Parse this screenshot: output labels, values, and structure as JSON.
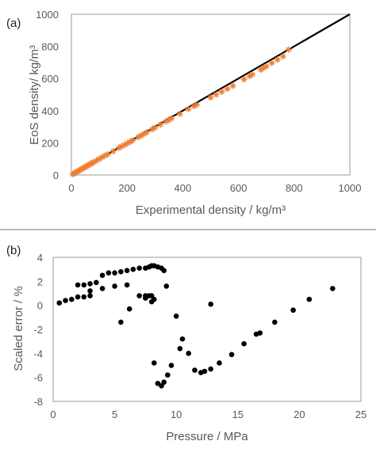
{
  "chart_data": [
    {
      "type": "scatter",
      "panel_label": "(a)",
      "title": "",
      "xlabel": "Experimental density / kg/m³",
      "ylabel": "EoS density/ kg/m³",
      "xlim": [
        0,
        1000
      ],
      "ylim": [
        0,
        1000
      ],
      "xticks": [
        0,
        200,
        400,
        600,
        800,
        1000
      ],
      "yticks": [
        0,
        200,
        400,
        600,
        800,
        1000
      ],
      "grid": false,
      "legend": "none",
      "series": [
        {
          "kind": "line",
          "color": "#000000",
          "x": [
            0,
            1000
          ],
          "y": [
            0,
            1000
          ]
        },
        {
          "kind": "scatter",
          "marker": "asterisk",
          "color": "#ed7d31",
          "x": [
            5,
            10,
            15,
            20,
            25,
            30,
            35,
            40,
            45,
            50,
            55,
            60,
            65,
            70,
            75,
            80,
            90,
            100,
            110,
            120,
            130,
            150,
            170,
            180,
            190,
            200,
            210,
            220,
            240,
            250,
            260,
            270,
            290,
            300,
            320,
            340,
            350,
            360,
            390,
            420,
            440,
            450,
            500,
            520,
            540,
            560,
            580,
            620,
            640,
            650,
            680,
            690,
            700,
            720,
            740,
            760,
            780
          ],
          "y": [
            5,
            10,
            15,
            20,
            25,
            30,
            35,
            40,
            45,
            50,
            55,
            60,
            65,
            70,
            75,
            80,
            90,
            100,
            110,
            120,
            128,
            148,
            168,
            178,
            186,
            196,
            206,
            215,
            235,
            245,
            255,
            265,
            284,
            294,
            314,
            333,
            343,
            352,
            380,
            410,
            428,
            438,
            482,
            500,
            518,
            536,
            555,
            595,
            615,
            625,
            655,
            666,
            676,
            697,
            718,
            738,
            780
          ]
        }
      ]
    },
    {
      "type": "scatter",
      "panel_label": "(b)",
      "title": "",
      "xlabel": "Pressure / MPa",
      "ylabel": "Scaled error / %",
      "xlim": [
        0,
        25
      ],
      "ylim": [
        -8,
        4
      ],
      "xticks": [
        0,
        5,
        10,
        15,
        20,
        25
      ],
      "yticks": [
        -8,
        -6,
        -4,
        -2,
        0,
        2,
        4
      ],
      "grid": false,
      "legend": "none",
      "series": [
        {
          "kind": "scatter",
          "marker": "circle",
          "color": "#000000",
          "x": [
            0.5,
            1,
            1.5,
            2,
            2.5,
            3,
            2,
            2.5,
            3,
            3.5,
            3,
            4,
            4,
            4.5,
            5,
            5.5,
            5,
            6,
            6.5,
            7,
            7.5,
            7.8,
            8,
            8.2,
            8.5,
            8.8,
            9,
            9.2,
            6,
            5.5,
            6.2,
            7,
            7.5,
            7.8,
            8,
            8.2,
            7.5,
            8,
            8.2,
            8.5,
            8.8,
            9,
            9.3,
            9.6,
            10,
            10.3,
            10.5,
            11,
            11.5,
            12,
            12.3,
            12.8,
            12.8,
            13.5,
            14.5,
            15.5,
            16.5,
            16.8,
            18,
            19.5,
            20.8,
            22.7
          ],
          "y": [
            0.2,
            0.4,
            0.5,
            0.7,
            0.7,
            0.8,
            1.7,
            1.7,
            1.8,
            1.9,
            1.2,
            1.4,
            2.5,
            2.7,
            2.7,
            2.8,
            1.6,
            2.9,
            3.0,
            3.1,
            3.1,
            3.2,
            3.3,
            3.3,
            3.2,
            3.1,
            2.9,
            1.6,
            1.7,
            -1.4,
            -0.3,
            0.8,
            0.8,
            0.8,
            0.8,
            0.5,
            0.6,
            0.3,
            -4.8,
            -6.5,
            -6.7,
            -6.4,
            -5.8,
            -5.0,
            -0.9,
            -3.6,
            -2.8,
            -4.0,
            -5.4,
            -5.6,
            -5.5,
            0.1,
            -5.3,
            -4.8,
            -4.1,
            -3.2,
            -2.4,
            -2.3,
            -1.4,
            -0.4,
            0.5,
            1.4
          ]
        }
      ]
    }
  ]
}
